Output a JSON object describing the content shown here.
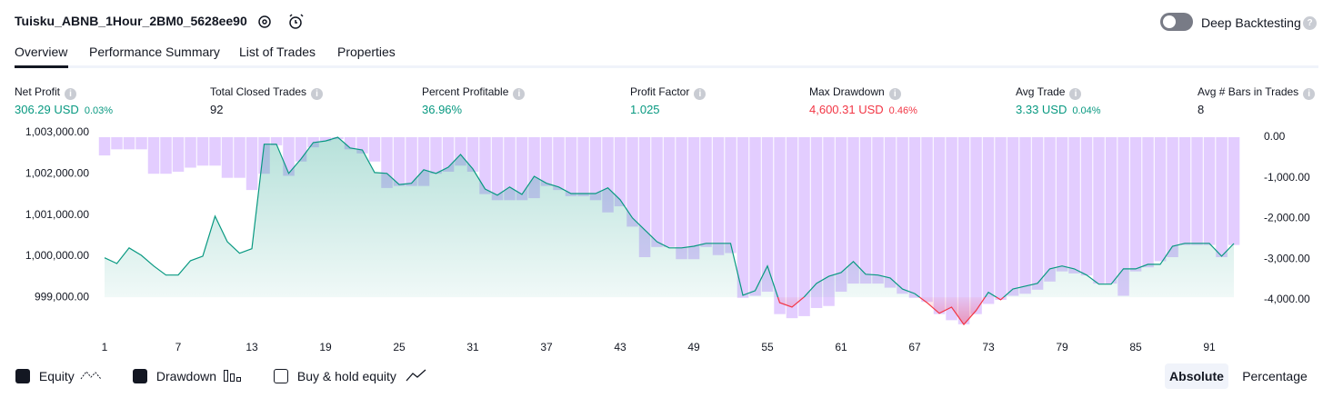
{
  "header": {
    "title": "Tuisku_ABNB_1Hour_2BM0_5628ee90",
    "toggle_label": "Deep Backtesting"
  },
  "tabs": [
    "Overview",
    "Performance Summary",
    "List of Trades",
    "Properties"
  ],
  "metrics": [
    {
      "label": "Net Profit",
      "value": "306.29 USD",
      "change": "0.03%"
    },
    {
      "label": "Total Closed Trades",
      "value": "92"
    },
    {
      "label": "Percent Profitable",
      "value": "36.96%"
    },
    {
      "label": "Profit Factor",
      "value": "1.025"
    },
    {
      "label": "Max Drawdown",
      "value": "4,600.31 USD",
      "change": "0.46%"
    },
    {
      "label": "Avg Trade",
      "value": "3.33 USD",
      "change": "0.04%"
    },
    {
      "label": "Avg # Bars in Trades",
      "value": "8"
    }
  ],
  "legend_options": [
    "Equity",
    "Drawdown",
    "Buy & hold equity"
  ],
  "view_modes": [
    "Absolute",
    "Percentage"
  ],
  "chart_data": {
    "type": "combo",
    "x": [
      1,
      2,
      3,
      4,
      5,
      6,
      7,
      8,
      9,
      10,
      11,
      12,
      13,
      14,
      15,
      16,
      17,
      18,
      19,
      20,
      21,
      22,
      23,
      24,
      25,
      26,
      27,
      28,
      29,
      30,
      31,
      32,
      33,
      34,
      35,
      36,
      37,
      38,
      39,
      40,
      41,
      42,
      43,
      44,
      45,
      46,
      47,
      48,
      49,
      50,
      51,
      52,
      53,
      54,
      55,
      56,
      57,
      58,
      59,
      60,
      61,
      62,
      63,
      64,
      65,
      66,
      67,
      68,
      69,
      70,
      71,
      72,
      73,
      74,
      75,
      76,
      77,
      78,
      79,
      80,
      81,
      82,
      83,
      84,
      85,
      86,
      87,
      88,
      89,
      90,
      91,
      92,
      93
    ],
    "xlim": [
      0.48,
      94.7
    ],
    "xticks": [
      1,
      7,
      13,
      19,
      25,
      31,
      37,
      43,
      49,
      55,
      61,
      67,
      73,
      79,
      85,
      91
    ],
    "ylim": [
      998275,
      1003000
    ],
    "yticks": [
      {
        "value": 999000,
        "label": "999,000.00"
      },
      {
        "value": 1000000,
        "label": "1,000,000.00"
      },
      {
        "value": 1001000,
        "label": "1,001,000.00"
      },
      {
        "value": 1002000,
        "label": "1,002,000.00"
      },
      {
        "value": 1003000,
        "label": "1,003,000.00"
      }
    ],
    "y2lim": [
      -4670,
      110
    ],
    "y2ticks": [
      {
        "value": 0,
        "label": "0.00"
      },
      {
        "value": -1000,
        "label": "-1,000.00"
      },
      {
        "value": -2000,
        "label": "-2,000.00"
      },
      {
        "value": -3000,
        "label": "-3,000.00"
      },
      {
        "value": -4000,
        "label": "-4,000.00"
      }
    ],
    "series": [
      {
        "name": "Equity",
        "type": "line",
        "axis": "y",
        "color": "#089981",
        "negative_color": "#f23645",
        "values": [
          999960,
          999820,
          1000200,
          1000020,
          999760,
          999540,
          999540,
          999890,
          1000000,
          1000970,
          1000350,
          1000070,
          1000180,
          1002720,
          1002720,
          1002010,
          1002360,
          1002760,
          1002800,
          1002890,
          1002630,
          1002580,
          1002030,
          1002010,
          1001740,
          1001770,
          1002100,
          1002010,
          1002160,
          1002470,
          1002120,
          1001630,
          1001480,
          1001680,
          1001500,
          1001940,
          1001770,
          1001680,
          1001520,
          1001520,
          1001520,
          1001660,
          1001370,
          1000930,
          1000640,
          1000350,
          1000200,
          1000200,
          1000240,
          1000310,
          1000310,
          1000310,
          999050,
          999160,
          999760,
          998870,
          998760,
          999010,
          999340,
          999510,
          999600,
          999870,
          999560,
          999540,
          999470,
          999200,
          999090,
          998870,
          998610,
          998760,
          998340,
          998680,
          999120,
          998940,
          999200,
          999270,
          999340,
          999690,
          999760,
          999690,
          999540,
          999320,
          999320,
          999690,
          999690,
          999800,
          999800,
          1000240,
          1000310,
          1000310,
          1000310,
          1000000,
          1000306
        ]
      },
      {
        "name": "Drawdown",
        "type": "bar",
        "axis": "y2",
        "color": "#b883ff",
        "values": [
          -450,
          -300,
          -300,
          -300,
          -900,
          -900,
          -850,
          -750,
          -700,
          -700,
          -1000,
          -1000,
          -1300,
          -900,
          -200,
          -950,
          -600,
          -250,
          -100,
          -50,
          -300,
          -400,
          -600,
          -1250,
          -1200,
          -1200,
          -1200,
          -900,
          -850,
          -700,
          -850,
          -1400,
          -1550,
          -1550,
          -1550,
          -1500,
          -1200,
          -1300,
          -1450,
          -1450,
          -1550,
          -1850,
          -1700,
          -2200,
          -2950,
          -2700,
          -2700,
          -3000,
          -3000,
          -2700,
          -2900,
          -2850,
          -3950,
          -3900,
          -3800,
          -4350,
          -4450,
          -4400,
          -4200,
          -4150,
          -3800,
          -3600,
          -3600,
          -3600,
          -3700,
          -3850,
          -3950,
          -4050,
          -4350,
          -4500,
          -4600,
          -4350,
          -4100,
          -4000,
          -3900,
          -3850,
          -3750,
          -3550,
          -3300,
          -3350,
          -3400,
          -3600,
          -3600,
          -3900,
          -3300,
          -3200,
          -3050,
          -2950,
          -2650,
          -2650,
          -2650,
          -2950,
          -2650
        ]
      }
    ]
  }
}
